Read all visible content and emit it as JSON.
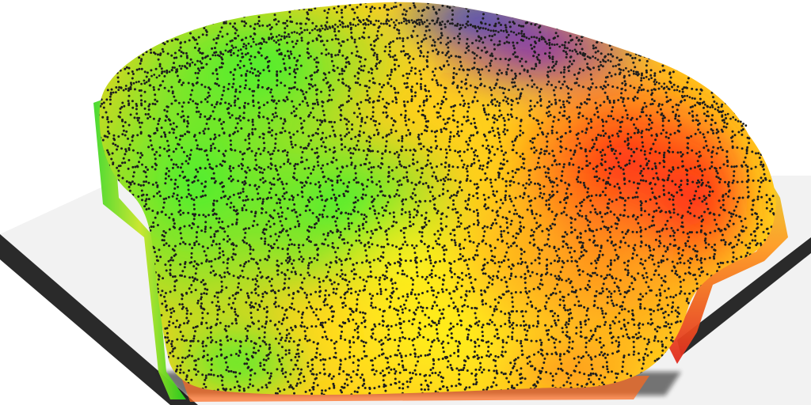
{
  "scene": {
    "subject": "render-3d-cell-mesh",
    "colors": {
      "background": "#ffffff",
      "plate_top": "#f2f2f2",
      "plate_edge": "#2a2a2a",
      "plate_shadow": "#111111",
      "vertex_dots": "#1e1e1e",
      "green": "#22e01a",
      "yellow": "#f5ea10",
      "orange": "#ff8a1a",
      "red": "#ff2a14",
      "purple": "#7a1fb8",
      "blue": "#2430d8"
    }
  }
}
